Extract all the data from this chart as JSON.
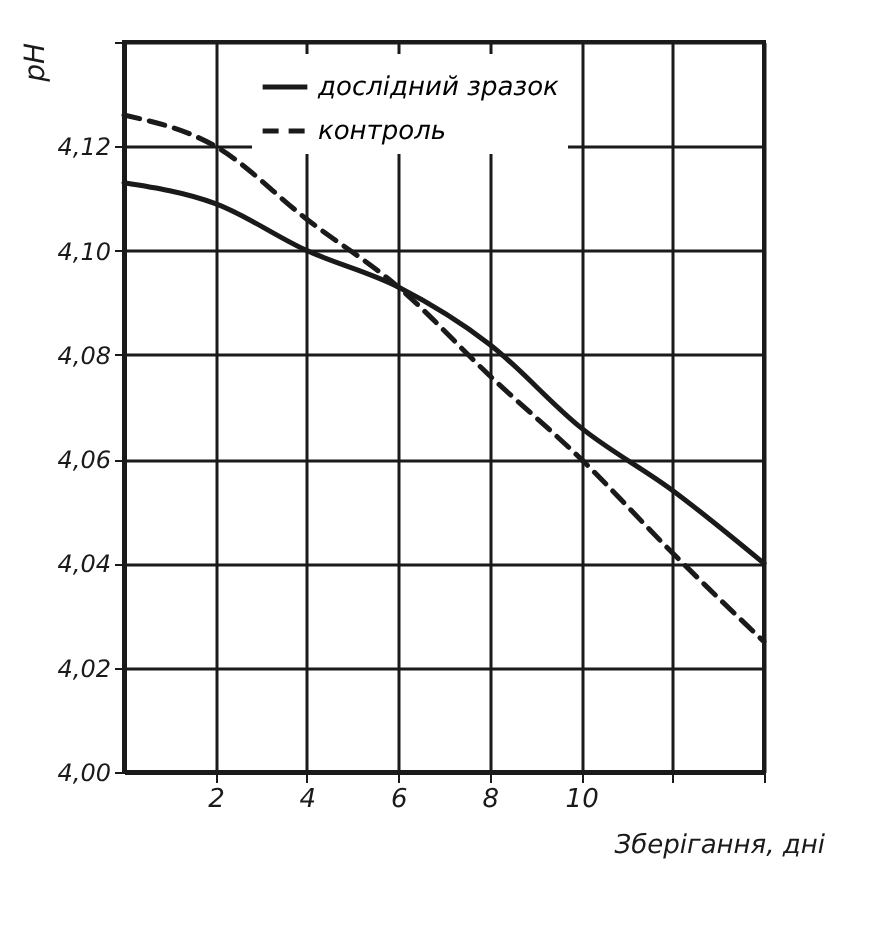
{
  "chart_data": {
    "type": "line",
    "xlabel": "Зберігання, дні",
    "ylabel": "pH",
    "x": [
      0,
      2,
      4,
      6,
      8,
      10,
      12,
      14
    ],
    "series": [
      {
        "name": "дослідний зразок",
        "color": "#1a1a1a",
        "line_style": "solid",
        "values": [
          4.113,
          4.109,
          4.1,
          4.093,
          4.082,
          4.066,
          4.054,
          4.04
        ]
      },
      {
        "name": "контроль",
        "color": "#1a1a1a",
        "line_style": "dashed",
        "values": [
          4.126,
          4.12,
          4.106,
          4.093,
          4.076,
          4.06,
          4.042,
          4.025
        ]
      }
    ],
    "xlim": [
      0,
      14
    ],
    "ylim": [
      4.0,
      4.14
    ],
    "xticks": [
      2,
      4,
      6,
      8,
      10,
      {
        "value": 12,
        "label": null
      },
      {
        "value": 14,
        "label": null
      }
    ],
    "yticks": [
      {
        "value": 4.0,
        "label": "4,00"
      },
      {
        "value": 4.02,
        "label": "4,02"
      },
      {
        "value": 4.04,
        "label": "4,04"
      },
      {
        "value": 4.06,
        "label": "4,06"
      },
      {
        "value": 4.08,
        "label": "4,08"
      },
      {
        "value": 4.1,
        "label": "4,10"
      },
      {
        "value": 4.12,
        "label": "4,12"
      },
      {
        "value": 4.14,
        "label": null
      }
    ],
    "grid": true,
    "legend": "top left"
  }
}
